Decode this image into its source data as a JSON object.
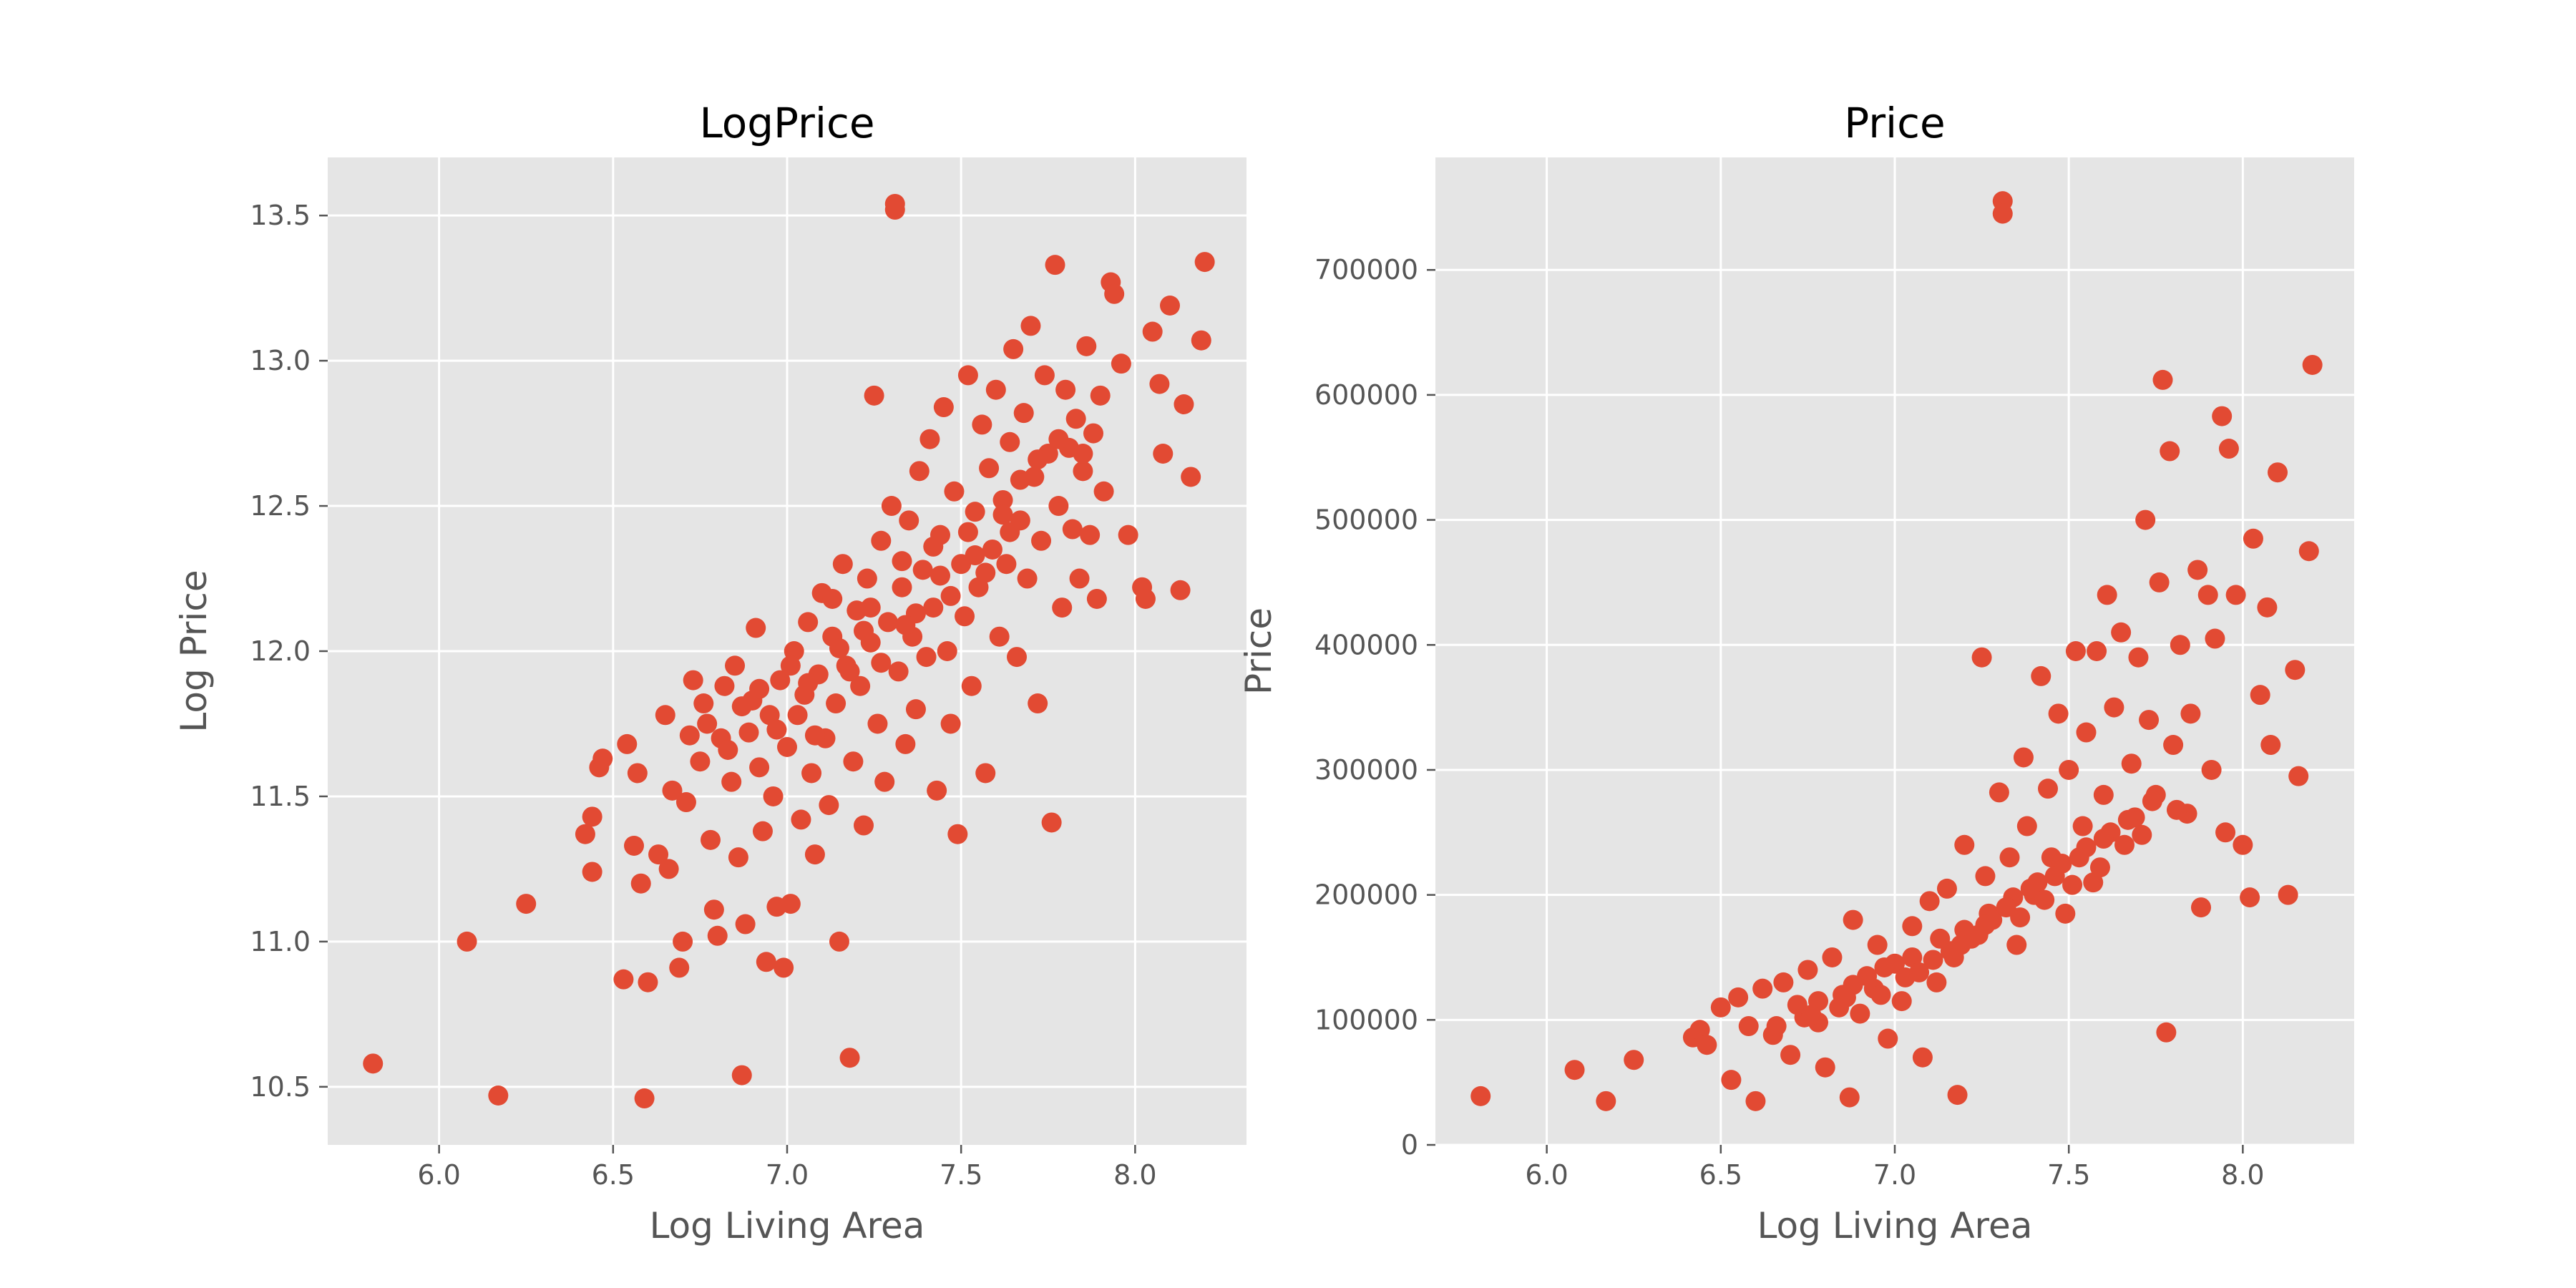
{
  "chart_data": [
    {
      "type": "scatter",
      "title": "LogPrice",
      "xlabel": "Log Living Area",
      "ylabel": "Log Price",
      "xlim": [
        5.68,
        8.32
      ],
      "ylim": [
        10.3,
        13.7
      ],
      "xticks": [
        6.0,
        6.5,
        7.0,
        7.5,
        8.0
      ],
      "xtick_labels": [
        "6.0",
        "6.5",
        "7.0",
        "7.5",
        "8.0"
      ],
      "yticks": [
        10.5,
        11.0,
        11.5,
        12.0,
        12.5,
        13.0,
        13.5
      ],
      "ytick_labels": [
        "10.5",
        "11.0",
        "11.5",
        "12.0",
        "12.5",
        "13.0",
        "13.5"
      ],
      "grid": true,
      "color": "#E24A33",
      "points": [
        [
          5.81,
          10.58
        ],
        [
          6.08,
          11.0
        ],
        [
          6.17,
          10.47
        ],
        [
          6.25,
          11.13
        ],
        [
          6.42,
          11.37
        ],
        [
          6.44,
          11.43
        ],
        [
          6.44,
          11.24
        ],
        [
          6.46,
          11.6
        ],
        [
          6.47,
          11.63
        ],
        [
          6.53,
          10.87
        ],
        [
          6.54,
          11.68
        ],
        [
          6.56,
          11.33
        ],
        [
          6.57,
          11.58
        ],
        [
          6.58,
          11.2
        ],
        [
          6.59,
          10.46
        ],
        [
          6.6,
          10.86
        ],
        [
          6.63,
          11.3
        ],
        [
          6.65,
          11.78
        ],
        [
          6.66,
          11.25
        ],
        [
          6.67,
          11.52
        ],
        [
          6.69,
          10.91
        ],
        [
          6.7,
          11.0
        ],
        [
          6.71,
          11.48
        ],
        [
          6.73,
          11.9
        ],
        [
          6.75,
          11.62
        ],
        [
          6.77,
          11.75
        ],
        [
          6.78,
          11.35
        ],
        [
          6.79,
          11.11
        ],
        [
          6.8,
          11.02
        ],
        [
          6.81,
          11.7
        ],
        [
          6.82,
          11.88
        ],
        [
          6.84,
          11.55
        ],
        [
          6.85,
          11.95
        ],
        [
          6.86,
          11.29
        ],
        [
          6.87,
          10.54
        ],
        [
          6.88,
          11.06
        ],
        [
          6.89,
          11.72
        ],
        [
          6.9,
          11.83
        ],
        [
          6.91,
          12.08
        ],
        [
          6.92,
          11.6
        ],
        [
          6.93,
          11.38
        ],
        [
          6.94,
          10.93
        ],
        [
          6.95,
          11.78
        ],
        [
          6.96,
          11.5
        ],
        [
          6.97,
          11.12
        ],
        [
          6.98,
          11.9
        ],
        [
          6.99,
          10.91
        ],
        [
          7.0,
          11.67
        ],
        [
          7.01,
          11.13
        ],
        [
          7.02,
          12.0
        ],
        [
          7.03,
          11.78
        ],
        [
          7.04,
          11.42
        ],
        [
          7.05,
          11.85
        ],
        [
          7.06,
          12.1
        ],
        [
          7.07,
          11.58
        ],
        [
          7.08,
          11.3
        ],
        [
          7.09,
          11.92
        ],
        [
          7.1,
          12.2
        ],
        [
          7.11,
          11.7
        ],
        [
          7.12,
          11.47
        ],
        [
          7.13,
          12.05
        ],
        [
          7.14,
          11.82
        ],
        [
          7.15,
          11.0
        ],
        [
          7.16,
          12.3
        ],
        [
          7.17,
          11.95
        ],
        [
          7.18,
          10.6
        ],
        [
          7.19,
          11.62
        ],
        [
          7.2,
          12.14
        ],
        [
          7.21,
          11.88
        ],
        [
          7.22,
          11.4
        ],
        [
          7.23,
          12.25
        ],
        [
          7.24,
          12.03
        ],
        [
          7.25,
          12.88
        ],
        [
          7.26,
          11.75
        ],
        [
          7.27,
          12.38
        ],
        [
          7.28,
          11.55
        ],
        [
          7.29,
          12.1
        ],
        [
          7.3,
          12.5
        ],
        [
          7.31,
          13.54
        ],
        [
          7.31,
          13.52
        ],
        [
          7.32,
          11.93
        ],
        [
          7.33,
          12.22
        ],
        [
          7.34,
          11.68
        ],
        [
          7.35,
          12.45
        ],
        [
          7.36,
          12.05
        ],
        [
          7.37,
          11.8
        ],
        [
          7.38,
          12.62
        ],
        [
          7.39,
          12.28
        ],
        [
          7.4,
          11.98
        ],
        [
          7.41,
          12.73
        ],
        [
          7.42,
          12.15
        ],
        [
          7.43,
          11.52
        ],
        [
          7.44,
          12.4
        ],
        [
          7.45,
          12.84
        ],
        [
          7.46,
          12.0
        ],
        [
          7.47,
          11.75
        ],
        [
          7.48,
          12.55
        ],
        [
          7.49,
          11.37
        ],
        [
          7.5,
          12.3
        ],
        [
          7.51,
          12.12
        ],
        [
          7.52,
          12.95
        ],
        [
          7.53,
          11.88
        ],
        [
          7.54,
          12.48
        ],
        [
          7.55,
          12.22
        ],
        [
          7.56,
          12.78
        ],
        [
          7.57,
          11.58
        ],
        [
          7.58,
          12.63
        ],
        [
          7.59,
          12.35
        ],
        [
          7.6,
          12.9
        ],
        [
          7.61,
          12.05
        ],
        [
          7.62,
          12.52
        ],
        [
          7.63,
          12.3
        ],
        [
          7.64,
          12.72
        ],
        [
          7.65,
          13.04
        ],
        [
          7.66,
          11.98
        ],
        [
          7.67,
          12.45
        ],
        [
          7.68,
          12.82
        ],
        [
          7.69,
          12.25
        ],
        [
          7.7,
          13.12
        ],
        [
          7.71,
          12.6
        ],
        [
          7.72,
          11.82
        ],
        [
          7.73,
          12.38
        ],
        [
          7.74,
          12.95
        ],
        [
          7.75,
          12.68
        ],
        [
          7.76,
          11.41
        ],
        [
          7.77,
          13.33
        ],
        [
          7.78,
          12.5
        ],
        [
          7.79,
          12.15
        ],
        [
          7.8,
          12.9
        ],
        [
          7.81,
          12.7
        ],
        [
          7.82,
          12.42
        ],
        [
          7.83,
          12.8
        ],
        [
          7.84,
          12.25
        ],
        [
          7.85,
          12.62
        ],
        [
          7.86,
          13.05
        ],
        [
          7.87,
          12.4
        ],
        [
          7.88,
          12.75
        ],
        [
          7.89,
          12.18
        ],
        [
          7.9,
          12.88
        ],
        [
          7.91,
          12.55
        ],
        [
          7.93,
          13.27
        ],
        [
          7.94,
          13.23
        ],
        [
          7.96,
          12.99
        ],
        [
          7.98,
          12.4
        ],
        [
          8.02,
          12.22
        ],
        [
          8.03,
          12.18
        ],
        [
          8.05,
          13.1
        ],
        [
          8.07,
          12.92
        ],
        [
          8.08,
          12.68
        ],
        [
          8.1,
          13.19
        ],
        [
          8.13,
          12.21
        ],
        [
          8.14,
          12.85
        ],
        [
          8.16,
          12.6
        ],
        [
          8.19,
          13.07
        ],
        [
          8.2,
          13.34
        ],
        [
          6.76,
          11.82
        ],
        [
          6.83,
          11.66
        ],
        [
          6.92,
          11.87
        ],
        [
          7.01,
          11.95
        ],
        [
          7.08,
          11.71
        ],
        [
          7.13,
          12.18
        ],
        [
          7.18,
          11.93
        ],
        [
          7.22,
          12.07
        ],
        [
          7.27,
          11.96
        ],
        [
          7.33,
          12.31
        ],
        [
          7.37,
          12.13
        ],
        [
          7.42,
          12.36
        ],
        [
          7.47,
          12.19
        ],
        [
          7.52,
          12.41
        ],
        [
          7.57,
          12.27
        ],
        [
          7.62,
          12.47
        ],
        [
          7.67,
          12.59
        ],
        [
          7.72,
          12.66
        ],
        [
          7.78,
          12.73
        ],
        [
          7.85,
          12.68
        ],
        [
          6.72,
          11.71
        ],
        [
          6.87,
          11.81
        ],
        [
          6.97,
          11.73
        ],
        [
          7.06,
          11.89
        ],
        [
          7.15,
          12.01
        ],
        [
          7.24,
          12.15
        ],
        [
          7.34,
          12.09
        ],
        [
          7.44,
          12.26
        ],
        [
          7.54,
          12.33
        ],
        [
          7.64,
          12.41
        ]
      ]
    },
    {
      "type": "scatter",
      "title": "Price",
      "xlabel": "Log Living Area",
      "ylabel": "Price",
      "xlim": [
        5.68,
        8.32
      ],
      "ylim": [
        0,
        790000
      ],
      "xticks": [
        6.0,
        6.5,
        7.0,
        7.5,
        8.0
      ],
      "xtick_labels": [
        "6.0",
        "6.5",
        "7.0",
        "7.5",
        "8.0"
      ],
      "yticks": [
        0,
        100000,
        200000,
        300000,
        400000,
        500000,
        600000,
        700000
      ],
      "ytick_labels": [
        "0",
        "100000",
        "200000",
        "300000",
        "400000",
        "500000",
        "600000",
        "700000"
      ],
      "grid": true,
      "color": "#E24A33",
      "points": [
        [
          5.81,
          39000
        ],
        [
          6.08,
          60000
        ],
        [
          6.17,
          35000
        ],
        [
          6.25,
          68000
        ],
        [
          6.42,
          86000
        ],
        [
          6.44,
          92000
        ],
        [
          6.46,
          80000
        ],
        [
          6.5,
          110000
        ],
        [
          6.53,
          52000
        ],
        [
          6.55,
          118000
        ],
        [
          6.58,
          95000
        ],
        [
          6.6,
          35000
        ],
        [
          6.62,
          125000
        ],
        [
          6.65,
          88000
        ],
        [
          6.68,
          130000
        ],
        [
          6.7,
          72000
        ],
        [
          6.72,
          112000
        ],
        [
          6.75,
          140000
        ],
        [
          6.78,
          98000
        ],
        [
          6.8,
          62000
        ],
        [
          6.82,
          150000
        ],
        [
          6.85,
          120000
        ],
        [
          6.87,
          38000
        ],
        [
          6.88,
          180000
        ],
        [
          6.9,
          105000
        ],
        [
          6.92,
          135000
        ],
        [
          6.95,
          160000
        ],
        [
          6.98,
          85000
        ],
        [
          7.0,
          145000
        ],
        [
          7.02,
          115000
        ],
        [
          7.05,
          175000
        ],
        [
          7.08,
          70000
        ],
        [
          7.1,
          195000
        ],
        [
          7.12,
          130000
        ],
        [
          7.15,
          205000
        ],
        [
          7.17,
          150000
        ],
        [
          7.18,
          40000
        ],
        [
          7.2,
          240000
        ],
        [
          7.22,
          165000
        ],
        [
          7.25,
          390000
        ],
        [
          7.26,
          215000
        ],
        [
          7.28,
          180000
        ],
        [
          7.3,
          282000
        ],
        [
          7.31,
          755000
        ],
        [
          7.31,
          745000
        ],
        [
          7.33,
          230000
        ],
        [
          7.35,
          160000
        ],
        [
          7.37,
          310000
        ],
        [
          7.38,
          255000
        ],
        [
          7.4,
          200000
        ],
        [
          7.42,
          375000
        ],
        [
          7.44,
          285000
        ],
        [
          7.45,
          230000
        ],
        [
          7.47,
          345000
        ],
        [
          7.49,
          185000
        ],
        [
          7.5,
          300000
        ],
        [
          7.52,
          395000
        ],
        [
          7.54,
          255000
        ],
        [
          7.55,
          330000
        ],
        [
          7.57,
          210000
        ],
        [
          7.58,
          395000
        ],
        [
          7.6,
          280000
        ],
        [
          7.61,
          440000
        ],
        [
          7.63,
          350000
        ],
        [
          7.65,
          410000
        ],
        [
          7.66,
          240000
        ],
        [
          7.68,
          305000
        ],
        [
          7.7,
          390000
        ],
        [
          7.72,
          500000
        ],
        [
          7.73,
          340000
        ],
        [
          7.75,
          280000
        ],
        [
          7.76,
          450000
        ],
        [
          7.77,
          612000
        ],
        [
          7.78,
          90000
        ],
        [
          7.79,
          555000
        ],
        [
          7.8,
          320000
        ],
        [
          7.82,
          400000
        ],
        [
          7.84,
          265000
        ],
        [
          7.85,
          345000
        ],
        [
          7.87,
          460000
        ],
        [
          7.88,
          190000
        ],
        [
          7.9,
          440000
        ],
        [
          7.91,
          300000
        ],
        [
          7.92,
          405000
        ],
        [
          7.94,
          583000
        ],
        [
          7.95,
          250000
        ],
        [
          7.96,
          557000
        ],
        [
          7.98,
          440000
        ],
        [
          8.0,
          240000
        ],
        [
          8.02,
          198000
        ],
        [
          8.03,
          485000
        ],
        [
          8.05,
          360000
        ],
        [
          8.07,
          430000
        ],
        [
          8.08,
          320000
        ],
        [
          8.1,
          538000
        ],
        [
          8.13,
          200000
        ],
        [
          8.15,
          380000
        ],
        [
          8.16,
          295000
        ],
        [
          8.19,
          475000
        ],
        [
          8.2,
          624000
        ],
        [
          6.78,
          115000
        ],
        [
          6.88,
          128000
        ],
        [
          6.97,
          142000
        ],
        [
          7.05,
          150000
        ],
        [
          7.13,
          165000
        ],
        [
          7.2,
          172000
        ],
        [
          7.27,
          185000
        ],
        [
          7.34,
          198000
        ],
        [
          7.41,
          210000
        ],
        [
          7.48,
          225000
        ],
        [
          7.55,
          238000
        ],
        [
          7.62,
          250000
        ],
        [
          7.69,
          262000
        ],
        [
          6.74,
          102000
        ],
        [
          6.84,
          110000
        ],
        [
          6.94,
          125000
        ],
        [
          7.03,
          134000
        ],
        [
          7.11,
          148000
        ],
        [
          7.19,
          160000
        ],
        [
          7.26,
          176000
        ],
        [
          7.32,
          190000
        ],
        [
          7.39,
          205000
        ],
        [
          7.46,
          215000
        ],
        [
          7.53,
          230000
        ],
        [
          7.6,
          245000
        ],
        [
          7.67,
          260000
        ],
        [
          7.74,
          275000
        ],
        [
          6.66,
          95000
        ],
        [
          6.76,
          104000
        ],
        [
          6.86,
          118000
        ],
        [
          6.96,
          120000
        ],
        [
          7.07,
          138000
        ],
        [
          7.16,
          155000
        ],
        [
          7.24,
          168000
        ],
        [
          7.36,
          182000
        ],
        [
          7.43,
          196000
        ],
        [
          7.51,
          208000
        ],
        [
          7.59,
          222000
        ],
        [
          7.71,
          248000
        ],
        [
          7.81,
          268000
        ]
      ]
    }
  ]
}
